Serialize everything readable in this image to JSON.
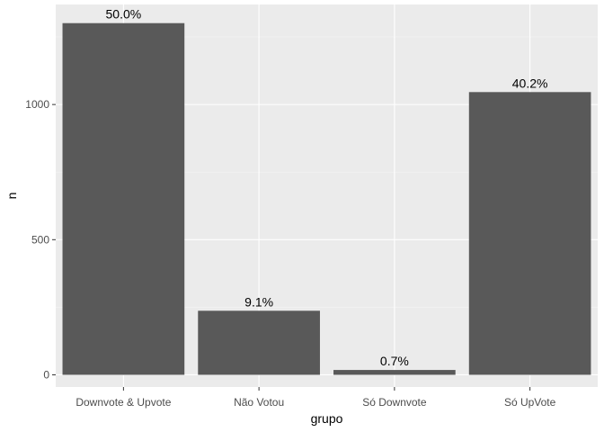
{
  "chart_data": {
    "type": "bar",
    "title": "",
    "xlabel": "grupo",
    "ylabel": "n",
    "categories": [
      "Downvote & Upvote",
      "Não Votou",
      "Só Downvote",
      "Só UpVote"
    ],
    "values": [
      1301,
      237,
      18,
      1046
    ],
    "data_labels": [
      "50.0%",
      "9.1%",
      "0.7%",
      "40.2%"
    ],
    "ylim": [
      -45,
      1370
    ],
    "yticks": [
      0,
      500,
      1000
    ],
    "ytick_labels": [
      "0",
      "500",
      "1000"
    ],
    "grid": true,
    "legend": "none",
    "colors": {
      "bar": "#595959",
      "panel": "#ebebeb",
      "grid_major": "#ffffff",
      "grid_minor": "#f5f5f5"
    }
  }
}
